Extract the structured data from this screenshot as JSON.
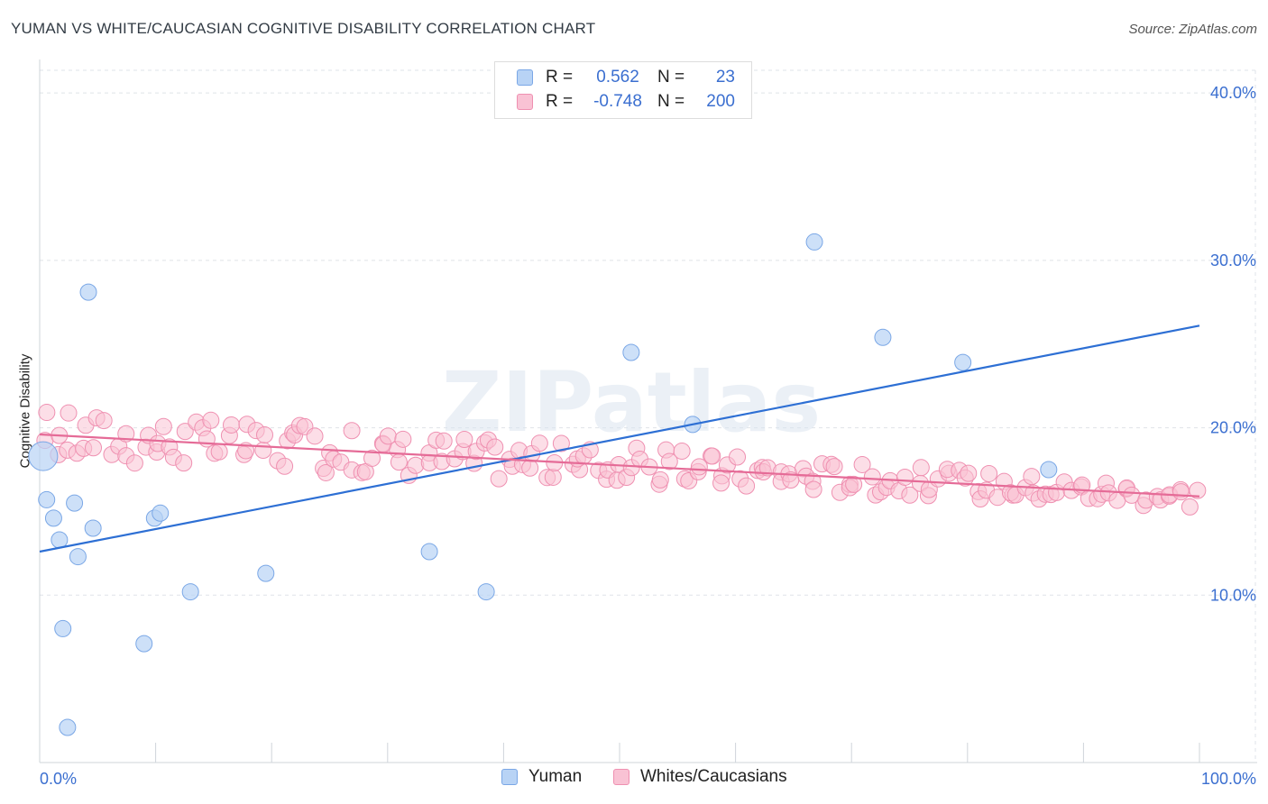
{
  "header": {
    "title": "YUMAN VS WHITE/CAUCASIAN COGNITIVE DISABILITY CORRELATION CHART",
    "source": "Source: ZipAtlas.com"
  },
  "colors": {
    "yuman_fill": "#b8d3f5",
    "yuman_stroke": "#7aa7e6",
    "yuman_line": "#2d6fd4",
    "white_fill": "#f9c2d4",
    "white_stroke": "#ef90b1",
    "white_line": "#e56b97",
    "tick_label": "#3b6fd0",
    "grid": "#dfe3e8"
  },
  "legend_top": {
    "rows": [
      {
        "r_label": "R =",
        "r_value": "0.562",
        "n_label": "N =",
        "n_value": "23"
      },
      {
        "r_label": "R =",
        "r_value": "-0.748",
        "n_label": "N =",
        "n_value": "200"
      }
    ]
  },
  "legend_bottom": {
    "items": [
      "Yuman",
      "Whites/Caucasians"
    ]
  },
  "chart_data": {
    "type": "scatter",
    "title": "YUMAN VS WHITE/CAUCASIAN COGNITIVE DISABILITY CORRELATION CHART",
    "xlabel": "",
    "ylabel": "Cognitive Disability",
    "xlim": [
      0,
      100
    ],
    "ylim": [
      0,
      42
    ],
    "x_tick_labels": [
      "0.0%",
      "100.0%"
    ],
    "y_ticks": [
      10,
      20,
      30,
      40
    ],
    "y_tick_labels": [
      "10.0%",
      "20.0%",
      "30.0%",
      "40.0%"
    ],
    "grid": true,
    "watermark": "ZIPatlas",
    "series": [
      {
        "name": "Yuman",
        "R": 0.562,
        "N": 23,
        "trend": {
          "x": [
            0,
            100
          ],
          "y": [
            12.6,
            26.1
          ]
        },
        "points": [
          {
            "x": 0.3,
            "y": 18.3,
            "big": true
          },
          {
            "x": 0.6,
            "y": 15.7
          },
          {
            "x": 1.2,
            "y": 14.6
          },
          {
            "x": 1.7,
            "y": 13.3
          },
          {
            "x": 2.0,
            "y": 8.0
          },
          {
            "x": 2.4,
            "y": 2.1
          },
          {
            "x": 3.0,
            "y": 15.5
          },
          {
            "x": 3.3,
            "y": 12.3
          },
          {
            "x": 4.2,
            "y": 28.1
          },
          {
            "x": 4.6,
            "y": 14.0
          },
          {
            "x": 9.0,
            "y": 7.1
          },
          {
            "x": 9.9,
            "y": 14.6
          },
          {
            "x": 10.4,
            "y": 14.9
          },
          {
            "x": 13.0,
            "y": 10.2
          },
          {
            "x": 19.5,
            "y": 11.3
          },
          {
            "x": 33.6,
            "y": 12.6
          },
          {
            "x": 38.5,
            "y": 10.2
          },
          {
            "x": 51.0,
            "y": 24.5
          },
          {
            "x": 56.3,
            "y": 20.2
          },
          {
            "x": 66.8,
            "y": 31.1
          },
          {
            "x": 72.7,
            "y": 25.4
          },
          {
            "x": 79.6,
            "y": 23.9
          },
          {
            "x": 87.0,
            "y": 17.5
          }
        ]
      },
      {
        "name": "Whites/Caucasians",
        "R": -0.748,
        "N": 200,
        "trend": {
          "x": [
            0,
            100
          ],
          "y": [
            19.6,
            15.9
          ]
        }
      }
    ]
  }
}
